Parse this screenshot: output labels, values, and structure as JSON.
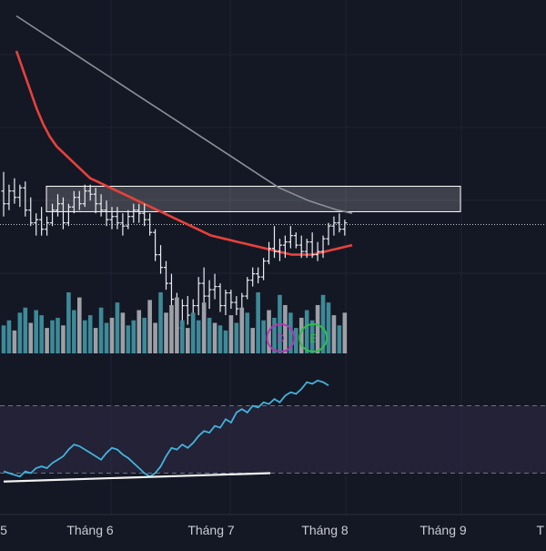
{
  "colors": {
    "background": "#141824",
    "grid": "#1f2433",
    "bar": "#e9ecf2",
    "ma_fast": "#e8413a",
    "ma_slow": "#8c8f98",
    "vol_up": "#3d8a99",
    "vol_down": "#9da0a7",
    "rsi_line": "#43b3dc",
    "rsi_band": "#2a2740",
    "trendline": "#f2f2f2",
    "zone": "#ffffff",
    "marker_d": "#b238b2",
    "marker_e": "#2fbf4a",
    "axis_text": "#c9ccd3"
  },
  "chart_data": {
    "type": "line",
    "x_axis": {
      "tick_labels": [
        "5",
        "Tháng 6",
        "Tháng 7",
        "Tháng 8",
        "Tháng 9",
        "T"
      ]
    },
    "price_panel": {
      "ohlc_bars": [
        [
          38.0,
          38.6,
          37.2,
          37.6
        ],
        [
          37.6,
          38.2,
          37.4,
          38.0
        ],
        [
          38.0,
          38.4,
          37.6,
          37.8
        ],
        [
          37.8,
          38.2,
          37.5,
          38.1
        ],
        [
          38.1,
          38.3,
          37.2,
          37.4
        ],
        [
          37.4,
          37.8,
          36.9,
          37.0
        ],
        [
          37.0,
          37.3,
          36.6,
          37.1
        ],
        [
          37.1,
          37.5,
          36.6,
          36.8
        ],
        [
          36.8,
          37.2,
          36.6,
          37.0
        ],
        [
          37.0,
          37.6,
          36.9,
          37.4
        ],
        [
          37.4,
          37.9,
          37.2,
          37.6
        ],
        [
          37.6,
          37.8,
          36.8,
          37.0
        ],
        [
          37.0,
          37.6,
          36.9,
          37.5
        ],
        [
          37.5,
          38.0,
          37.3,
          37.8
        ],
        [
          37.8,
          38.0,
          37.4,
          37.6
        ],
        [
          37.6,
          38.2,
          37.5,
          38.0
        ],
        [
          38.0,
          38.2,
          37.7,
          37.9
        ],
        [
          37.9,
          38.1,
          37.3,
          37.6
        ],
        [
          37.6,
          37.9,
          37.2,
          37.4
        ],
        [
          37.4,
          37.7,
          36.9,
          37.1
        ],
        [
          37.1,
          37.5,
          36.8,
          37.2
        ],
        [
          37.2,
          37.5,
          36.8,
          37.0
        ],
        [
          37.0,
          37.3,
          36.6,
          36.9
        ],
        [
          36.9,
          37.4,
          36.8,
          37.2
        ],
        [
          37.2,
          37.6,
          37.0,
          37.4
        ],
        [
          37.4,
          37.6,
          37.0,
          37.3
        ],
        [
          37.3,
          37.6,
          36.9,
          37.1
        ],
        [
          37.1,
          37.3,
          36.6,
          36.7
        ],
        [
          36.7,
          36.8,
          35.8,
          36.0
        ],
        [
          36.0,
          36.3,
          35.4,
          35.6
        ],
        [
          35.6,
          35.8,
          34.9,
          35.1
        ],
        [
          35.1,
          35.4,
          34.3,
          34.6
        ],
        [
          34.6,
          34.8,
          33.5,
          33.7
        ],
        [
          33.7,
          34.6,
          33.6,
          34.4
        ],
        [
          34.4,
          34.7,
          33.8,
          34.1
        ],
        [
          34.1,
          34.6,
          33.8,
          34.4
        ],
        [
          34.4,
          35.3,
          34.1,
          35.1
        ],
        [
          35.1,
          35.6,
          34.5,
          34.7
        ],
        [
          34.7,
          35.2,
          34.3,
          34.9
        ],
        [
          34.9,
          35.4,
          34.6,
          35.0
        ],
        [
          35.0,
          35.1,
          34.2,
          34.4
        ],
        [
          34.4,
          34.9,
          34.1,
          34.8
        ],
        [
          34.8,
          34.9,
          34.3,
          34.5
        ],
        [
          34.5,
          34.7,
          34.1,
          34.3
        ],
        [
          34.3,
          34.8,
          34.2,
          34.7
        ],
        [
          34.7,
          35.3,
          34.6,
          35.2
        ],
        [
          35.2,
          35.6,
          35.0,
          35.4
        ],
        [
          35.4,
          35.6,
          35.1,
          35.3
        ],
        [
          35.3,
          35.9,
          35.2,
          35.8
        ],
        [
          35.8,
          36.4,
          35.7,
          36.2
        ],
        [
          36.2,
          36.9,
          35.9,
          36.1
        ],
        [
          36.1,
          36.5,
          35.8,
          36.3
        ],
        [
          36.3,
          36.6,
          35.9,
          36.4
        ],
        [
          36.4,
          36.9,
          36.2,
          36.6
        ],
        [
          36.6,
          36.7,
          36.2,
          36.3
        ],
        [
          36.3,
          36.6,
          35.9,
          36.1
        ],
        [
          36.1,
          36.5,
          35.9,
          36.4
        ],
        [
          36.4,
          36.7,
          35.9,
          36.0
        ],
        [
          36.0,
          36.4,
          35.8,
          36.1
        ],
        [
          36.1,
          36.6,
          35.9,
          36.5
        ],
        [
          36.5,
          37.0,
          36.3,
          36.9
        ],
        [
          36.9,
          37.2,
          36.6,
          37.0
        ],
        [
          37.0,
          37.3,
          36.7,
          36.8
        ],
        [
          36.8,
          37.1,
          36.6,
          37.0
        ]
      ],
      "ma_fast": [
        42.4,
        41.8,
        41.2,
        40.6,
        40.1,
        39.7,
        39.4,
        39.2,
        39.0,
        38.8,
        38.6,
        38.4,
        38.3,
        38.2,
        38.1,
        38.0,
        37.9,
        37.8,
        37.7,
        37.6,
        37.5,
        37.4,
        37.3,
        37.2,
        37.1,
        37.0,
        36.9,
        36.8,
        36.7,
        36.6,
        36.55,
        36.5,
        36.45,
        36.4,
        36.35,
        36.3,
        36.25,
        36.2,
        36.15,
        36.1,
        36.05,
        36.0,
        36.0,
        36.0,
        36.0,
        36.05,
        36.1,
        36.15,
        36.2,
        36.25,
        36.3
      ],
      "ma_slow": [
        43.5,
        43.2,
        42.9,
        42.6,
        42.3,
        42.0,
        41.7,
        41.4,
        41.1,
        40.8,
        40.5,
        40.2,
        39.9,
        39.6,
        39.3,
        39.0,
        38.7,
        38.4,
        38.1,
        37.9,
        37.7,
        37.55,
        37.4,
        37.3
      ],
      "last_price": 36.95,
      "zone": {
        "high": 38.15,
        "low": 37.35
      }
    },
    "volume_panel": {
      "values": [
        1.1,
        1.3,
        0.9,
        1.6,
        1.8,
        1.2,
        1.7,
        1.5,
        1.0,
        1.3,
        1.4,
        1.1,
        2.4,
        1.7,
        2.2,
        1.3,
        1.5,
        1.0,
        1.8,
        1.2,
        1.4,
        2.0,
        1.6,
        1.1,
        1.3,
        1.7,
        1.4,
        2.1,
        1.2,
        2.4,
        1.6,
        1.9,
        2.2,
        1.3,
        1.0,
        1.6,
        1.3,
        2.0,
        1.4,
        1.2,
        1.1,
        0.9,
        1.5,
        1.2,
        1.8,
        1.6,
        1.0,
        2.4,
        1.3,
        1.7,
        1.4,
        2.3,
        1.9,
        1.6,
        1.0,
        1.4,
        1.7,
        1.3,
        1.9,
        2.3,
        2.0,
        1.5,
        1.1,
        1.6
      ],
      "up": [
        true,
        true,
        false,
        true,
        true,
        false,
        true,
        true,
        false,
        true,
        true,
        false,
        true,
        true,
        false,
        true,
        true,
        false,
        true,
        true,
        false,
        true,
        false,
        true,
        true,
        false,
        true,
        false,
        false,
        true,
        false,
        false,
        false,
        true,
        false,
        true,
        true,
        false,
        true,
        false,
        true,
        true,
        false,
        true,
        false,
        true,
        false,
        true,
        true,
        false,
        true,
        true,
        false,
        true,
        true,
        false,
        true,
        true,
        false,
        true,
        true,
        false,
        true,
        false
      ],
      "markers": [
        {
          "label": "D",
          "index": 51
        },
        {
          "label": "E",
          "index": 57
        }
      ]
    },
    "rsi_panel": {
      "values": [
        31,
        30,
        29,
        28,
        31,
        30,
        33,
        34,
        33,
        36,
        38,
        40,
        44,
        47,
        46,
        44,
        42,
        40,
        38,
        42,
        45,
        44,
        41,
        39,
        36,
        33,
        30,
        28,
        30,
        34,
        40,
        45,
        44,
        47,
        45,
        48,
        52,
        55,
        54,
        58,
        57,
        62,
        60,
        66,
        68,
        66,
        70,
        69,
        72,
        71,
        74,
        72,
        76,
        78,
        77,
        80,
        84,
        83,
        85,
        84,
        82
      ],
      "upper_band": 70,
      "lower_band": 30,
      "trendline": {
        "start": 25,
        "end": 30
      }
    }
  }
}
